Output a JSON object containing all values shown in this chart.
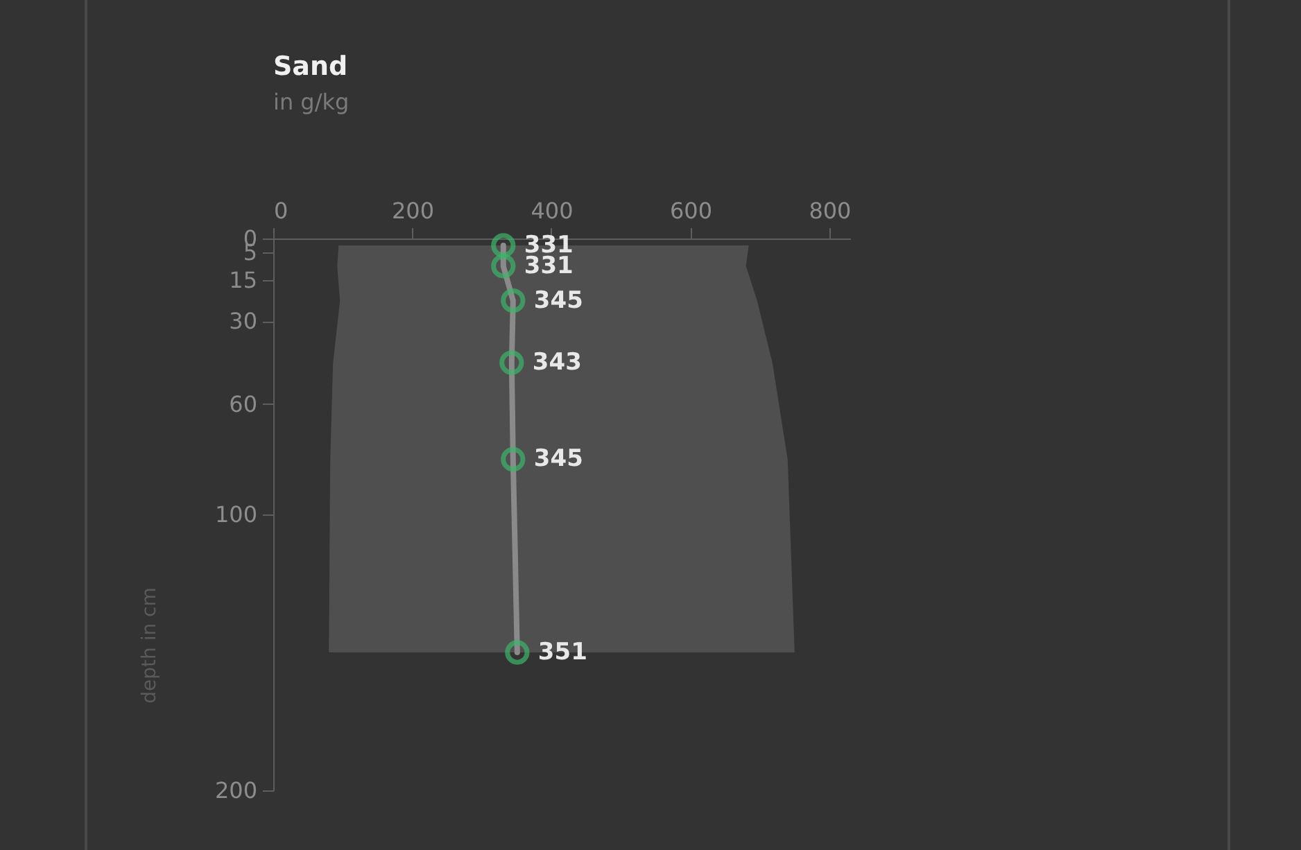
{
  "chart_data": {
    "type": "line",
    "orientation": "horizontal",
    "title": "Sand",
    "subtitle": "in g/kg",
    "ylabel": "depth in cm",
    "x": [
      2.5,
      10,
      22.5,
      45,
      80,
      150
    ],
    "series": [
      {
        "color": "#3cb56a",
        "values": [
          331,
          331,
          345,
          343,
          345,
          351
        ],
        "lower": [
          94,
          92,
          96,
          86,
          82,
          80
        ],
        "upper": [
          684,
          680,
          696,
          718,
          740,
          750
        ]
      }
    ],
    "xlim": [
      0,
      830
    ],
    "xticks": [
      0,
      200,
      400,
      600,
      800
    ],
    "ylim": [
      200,
      0
    ],
    "yticks": [
      0,
      5,
      15,
      30,
      60,
      100,
      200
    ],
    "data_labels": true,
    "marker": "circle",
    "grid": false
  }
}
